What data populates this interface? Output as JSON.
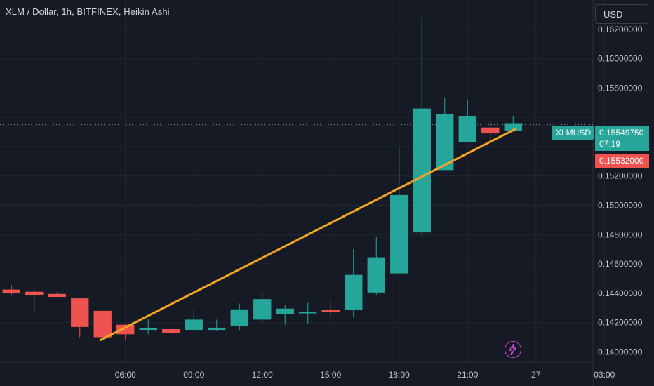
{
  "header": {
    "title": "XLM / Dollar, 1h, BITFINEX, Heikin Ashi",
    "currency_label": "USD"
  },
  "price_labels": {
    "symbol": "XLMUSD",
    "last_price": "0.15549750",
    "countdown": "07:19",
    "previous_close": "0.15532000"
  },
  "icons": {
    "alert": "lightning-bolt-icon"
  },
  "colors": {
    "background": "#161a25",
    "bullish": "#26a69a",
    "bearish": "#ef5350",
    "trendline": "#f5a623",
    "grid": "#232733"
  },
  "chart_data": {
    "type": "candlestick",
    "style": "Heikin Ashi",
    "grid": true,
    "y_axis": {
      "side": "right",
      "ylim": [
        0.1393,
        0.164
      ],
      "ticks": [
        0.14,
        0.142,
        0.144,
        0.146,
        0.148,
        0.15,
        0.152,
        0.154,
        0.156,
        0.158,
        0.16,
        0.162
      ],
      "tick_labels": [
        "0.14000000",
        "0.14200000",
        "0.14400000",
        "0.14600000",
        "0.14800000",
        "0.15000000",
        "0.15200000",
        "",
        "",
        "0.15800000",
        "0.16000000",
        "0.16200000"
      ]
    },
    "x_axis": {
      "ticks": [
        5.0,
        8.0,
        11.0,
        14.0,
        17.0,
        20.0,
        23.0,
        26.0
      ],
      "tick_labels": [
        "06:00",
        "09:00",
        "12:00",
        "15:00",
        "18:00",
        "21:00",
        "27",
        "03:00"
      ]
    },
    "xlim": [
      -0.5,
      25.5
    ],
    "candles": [
      {
        "t": 0,
        "o": 0.14425,
        "h": 0.14455,
        "l": 0.14385,
        "c": 0.144
      },
      {
        "t": 1,
        "o": 0.1441,
        "h": 0.14425,
        "l": 0.1427,
        "c": 0.14385
      },
      {
        "t": 2,
        "o": 0.14395,
        "h": 0.14405,
        "l": 0.14375,
        "c": 0.14375
      },
      {
        "t": 3,
        "o": 0.14365,
        "h": 0.14365,
        "l": 0.141,
        "c": 0.1417
      },
      {
        "t": 4,
        "o": 0.1428,
        "h": 0.1428,
        "l": 0.1409,
        "c": 0.141
      },
      {
        "t": 5,
        "o": 0.14185,
        "h": 0.14195,
        "l": 0.14085,
        "c": 0.1412
      },
      {
        "t": 6,
        "o": 0.1415,
        "h": 0.14225,
        "l": 0.1412,
        "c": 0.1416
      },
      {
        "t": 7,
        "o": 0.14155,
        "h": 0.1416,
        "l": 0.1412,
        "c": 0.1413
      },
      {
        "t": 8,
        "o": 0.1415,
        "h": 0.1429,
        "l": 0.14145,
        "c": 0.1422
      },
      {
        "t": 9,
        "o": 0.1415,
        "h": 0.1422,
        "l": 0.14145,
        "c": 0.14165
      },
      {
        "t": 10,
        "o": 0.14175,
        "h": 0.1433,
        "l": 0.1415,
        "c": 0.1429
      },
      {
        "t": 11,
        "o": 0.1422,
        "h": 0.14395,
        "l": 0.142,
        "c": 0.1436
      },
      {
        "t": 12,
        "o": 0.1426,
        "h": 0.1432,
        "l": 0.14185,
        "c": 0.14295
      },
      {
        "t": 13,
        "o": 0.1427,
        "h": 0.14335,
        "l": 0.1419,
        "c": 0.1427
      },
      {
        "t": 14,
        "o": 0.14285,
        "h": 0.14345,
        "l": 0.1424,
        "c": 0.1427
      },
      {
        "t": 15,
        "o": 0.14285,
        "h": 0.147,
        "l": 0.14235,
        "c": 0.14525
      },
      {
        "t": 16,
        "o": 0.14405,
        "h": 0.14785,
        "l": 0.14385,
        "c": 0.14645
      },
      {
        "t": 17,
        "o": 0.14535,
        "h": 0.154,
        "l": 0.1453,
        "c": 0.1507
      },
      {
        "t": 18,
        "o": 0.14815,
        "h": 0.16275,
        "l": 0.1479,
        "c": 0.1566
      },
      {
        "t": 19,
        "o": 0.1524,
        "h": 0.1573,
        "l": 0.1524,
        "c": 0.1562
      },
      {
        "t": 20,
        "o": 0.1543,
        "h": 0.1572,
        "l": 0.1543,
        "c": 0.1561
      },
      {
        "t": 21,
        "o": 0.1553,
        "h": 0.1557,
        "l": 0.1543,
        "c": 0.1549
      },
      {
        "t": 22,
        "o": 0.1551,
        "h": 0.1561,
        "l": 0.155,
        "c": 0.1556
      }
    ],
    "trendline": {
      "from": {
        "t": 3.9,
        "price": 0.1408
      },
      "to": {
        "t": 22.1,
        "price": 0.1552
      }
    },
    "current_price_line": 0.1554975
  }
}
